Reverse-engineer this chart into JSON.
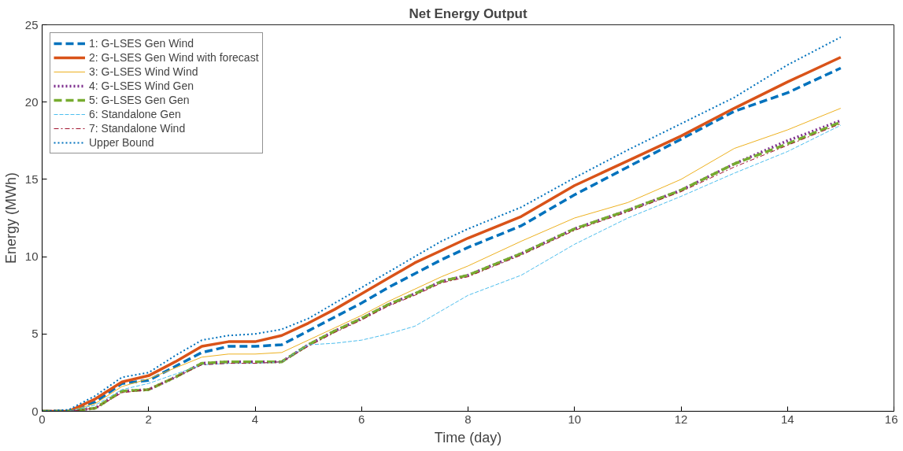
{
  "chart_data": {
    "type": "line",
    "title": "Net Energy Output",
    "xlabel": "Time (day)",
    "ylabel": "Energy (MWh)",
    "x": [
      0,
      0.5,
      1,
      1.5,
      2,
      2.5,
      3,
      3.5,
      4,
      4.5,
      5,
      5.5,
      6,
      6.5,
      7,
      7.5,
      8,
      9,
      10,
      11,
      12,
      13,
      14,
      15
    ],
    "xlim": [
      0,
      16
    ],
    "xticks": [
      0,
      2,
      4,
      6,
      8,
      10,
      12,
      14,
      16
    ],
    "ylim": [
      0,
      25
    ],
    "yticks": [
      0,
      5,
      10,
      15,
      20,
      25
    ],
    "grid": false,
    "legend": "top left",
    "marker": "none",
    "series": [
      {
        "name": "1: G-LSES Gen Wind",
        "color": "#0072bd",
        "line_style": "dashed",
        "values": [
          0,
          0,
          0.6,
          1.8,
          2.0,
          2.9,
          3.8,
          4.2,
          4.2,
          4.3,
          5.2,
          6.1,
          7.0,
          8.0,
          8.9,
          9.8,
          10.6,
          12.0,
          14.0,
          15.8,
          17.6,
          19.4,
          20.6,
          22.2
        ]
      },
      {
        "name": "2: G-LSES Gen Wind with forecast",
        "color": "#d95319",
        "line_style": "solid",
        "values": [
          0,
          0,
          0.8,
          1.9,
          2.3,
          3.2,
          4.2,
          4.5,
          4.5,
          4.9,
          5.7,
          6.6,
          7.6,
          8.6,
          9.6,
          10.4,
          11.2,
          12.6,
          14.6,
          16.2,
          17.8,
          19.6,
          21.3,
          22.9
        ]
      },
      {
        "name": "3: G-LSES Wind Wind",
        "color": "#edb120",
        "line_style": "solid",
        "values": [
          0,
          0,
          0.5,
          1.6,
          2.1,
          2.8,
          3.5,
          3.7,
          3.7,
          3.8,
          4.6,
          5.4,
          6.2,
          7.1,
          7.9,
          8.7,
          9.4,
          11.0,
          12.5,
          13.5,
          15.0,
          17.0,
          18.2,
          19.6
        ]
      },
      {
        "name": "4: G-LSES Wind Gen",
        "color": "#7e2f8e",
        "line_style": "dotted",
        "values": [
          0,
          0,
          0.2,
          1.3,
          1.4,
          2.2,
          3.1,
          3.2,
          3.2,
          3.2,
          4.3,
          5.2,
          6.0,
          6.9,
          7.6,
          8.4,
          8.8,
          10.2,
          11.8,
          13.0,
          14.3,
          16.0,
          17.5,
          18.8
        ]
      },
      {
        "name": "5: G-LSES Gen Gen",
        "color": "#77ac30",
        "line_style": "dashed",
        "values": [
          0,
          0,
          0.2,
          1.3,
          1.4,
          2.2,
          3.1,
          3.2,
          3.2,
          3.2,
          4.3,
          5.2,
          6.0,
          6.9,
          7.6,
          8.4,
          8.8,
          10.2,
          11.8,
          13.0,
          14.3,
          16.0,
          17.3,
          18.7
        ]
      },
      {
        "name": "6: Standalone Gen",
        "color": "#4dbeee",
        "line_style": "dashed",
        "values": [
          0,
          0,
          0.4,
          1.4,
          1.8,
          2.4,
          3.0,
          3.1,
          3.1,
          3.2,
          4.3,
          4.4,
          4.6,
          5.0,
          5.5,
          6.5,
          7.5,
          8.8,
          10.8,
          12.5,
          13.9,
          15.4,
          16.8,
          18.5
        ]
      },
      {
        "name": "7: Standalone Wind",
        "color": "#a2142f",
        "line_style": "dashdot",
        "values": [
          0,
          0,
          0.2,
          1.2,
          1.4,
          2.2,
          3.0,
          3.1,
          3.1,
          3.2,
          4.2,
          5.1,
          5.9,
          6.8,
          7.5,
          8.3,
          8.7,
          10.1,
          11.7,
          12.9,
          14.2,
          15.8,
          17.2,
          18.6
        ]
      },
      {
        "name": "Upper Bound",
        "color": "#0072bd",
        "line_style": "dotted",
        "values": [
          0,
          0.1,
          1.0,
          2.2,
          2.5,
          3.6,
          4.6,
          4.9,
          5.0,
          5.3,
          6.0,
          7.0,
          8.0,
          9.0,
          10.0,
          11.0,
          11.8,
          13.2,
          15.1,
          16.9,
          18.6,
          20.3,
          22.4,
          24.2
        ]
      }
    ]
  }
}
